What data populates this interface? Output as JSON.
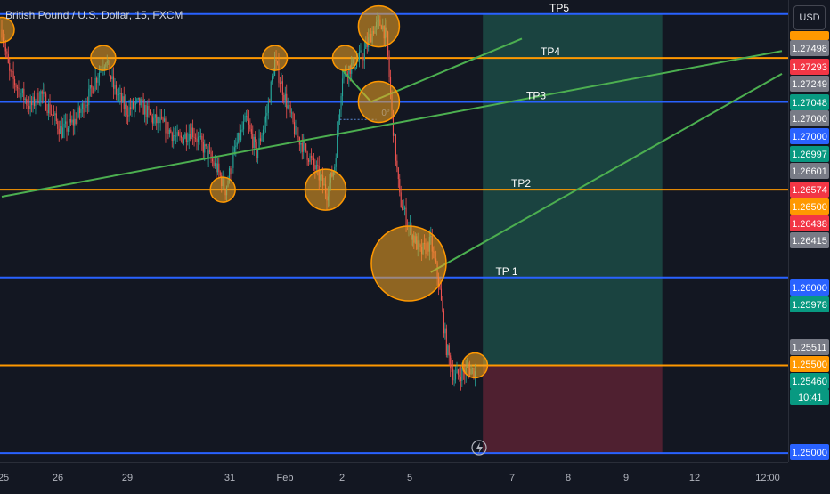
{
  "symbol_title": "British Pound / U.S. Dollar, 15, FXCM",
  "currency_button": "USD",
  "colors": {
    "background": "#131722",
    "blue_level": "#2962ff",
    "orange_level": "#ff9800",
    "trendline": "#4caf50",
    "candle_up": "#26a69a",
    "candle_down": "#ef5350",
    "highlight_circle_fill": "#f5a623",
    "highlight_circle_stroke": "#ff9800",
    "target_zone": "#1c4b45",
    "stop_zone": "#5a2233"
  },
  "chart_data": {
    "type": "candlestick",
    "symbol": "GBPUSD",
    "timeframe": "15",
    "source": "FXCM",
    "ylim": [
      1.2495,
      1.2758
    ],
    "x_tick_labels": [
      "25",
      "26",
      "29",
      "31",
      "Feb",
      "2",
      "5",
      "7",
      "8",
      "9",
      "12",
      "12:00"
    ],
    "price_axis_labels": [
      {
        "value": 1.27498,
        "text": "1.27498",
        "color": "#787b86"
      },
      {
        "value": 1.27293,
        "text": "1.27293",
        "color": "#f23645"
      },
      {
        "value": 1.27249,
        "text": "1.27249",
        "color": "#787b86"
      },
      {
        "value": 1.27048,
        "text": "1.27048",
        "color": "#089981"
      },
      {
        "value": 1.27,
        "text": "1.27000",
        "color": "#787b86"
      },
      {
        "value": 1.27,
        "text": "1.27000",
        "color": "#2962ff"
      },
      {
        "value": 1.26997,
        "text": "1.26997",
        "color": "#089981"
      },
      {
        "value": 1.26601,
        "text": "1.26601",
        "color": "#787b86"
      },
      {
        "value": 1.26574,
        "text": "1.26574",
        "color": "#f23645"
      },
      {
        "value": 1.265,
        "text": "1.26500",
        "color": "#ff9800"
      },
      {
        "value": 1.26438,
        "text": "1.26438",
        "color": "#f23645"
      },
      {
        "value": 1.26415,
        "text": "1.26415",
        "color": "#787b86"
      },
      {
        "value": 1.26,
        "text": "1.26000",
        "color": "#2962ff"
      },
      {
        "value": 1.25978,
        "text": "1.25978",
        "color": "#089981"
      },
      {
        "value": 1.25511,
        "text": "1.25511",
        "color": "#787b86"
      },
      {
        "value": 1.255,
        "text": "1.25500",
        "color": "#ff9800"
      },
      {
        "value": 1.2546,
        "text": "1.25460",
        "color": "#089981"
      },
      {
        "value": 1.25,
        "text": "1.25000",
        "color": "#2962ff"
      }
    ],
    "current_price": "1.25460",
    "countdown": "10:41",
    "horizontal_levels": [
      {
        "price": 1.275,
        "color": "#2962ff",
        "label": "TP5"
      },
      {
        "price": 1.2725,
        "color": "#ff9800",
        "label": "TP4"
      },
      {
        "price": 1.27,
        "color": "#2962ff",
        "label": "TP3"
      },
      {
        "price": 1.265,
        "color": "#ff9800",
        "label": "TP2"
      },
      {
        "price": 1.26,
        "color": "#2962ff",
        "label": "TP 1"
      },
      {
        "price": 1.255,
        "color": "#ff9800",
        "label": ""
      },
      {
        "price": 1.25,
        "color": "#2962ff",
        "label": ""
      }
    ],
    "trendlines": [
      {
        "from": {
          "bar": 0,
          "price": 1.2646
        },
        "to": {
          "bar": 600,
          "price": 1.2729
        }
      },
      {
        "from": {
          "bar": 330,
          "price": 1.2603
        },
        "to": {
          "bar": 600,
          "price": 1.2716
        }
      },
      {
        "from": {
          "bar": 262,
          "price": 1.2718
        },
        "to": {
          "bar": 284,
          "price": 1.27
        }
      },
      {
        "from": {
          "bar": 284,
          "price": 1.27
        },
        "to": {
          "bar": 400,
          "price": 1.2736
        }
      }
    ],
    "angle_label": "0°",
    "highlight_circles": [
      {
        "bar": 0,
        "price": 1.2741,
        "size": "small"
      },
      {
        "bar": 78,
        "price": 1.2725,
        "size": "small"
      },
      {
        "bar": 170,
        "price": 1.265,
        "size": "small"
      },
      {
        "bar": 210,
        "price": 1.2725,
        "size": "small"
      },
      {
        "bar": 249,
        "price": 1.265,
        "size": "medium"
      },
      {
        "bar": 264,
        "price": 1.2725,
        "size": "small"
      },
      {
        "bar": 290,
        "price": 1.2743,
        "size": "medium"
      },
      {
        "bar": 290,
        "price": 1.27,
        "size": "medium"
      },
      {
        "bar": 313,
        "price": 1.2608,
        "size": "large"
      },
      {
        "bar": 364,
        "price": 1.255,
        "size": "small"
      }
    ],
    "position_tool": {
      "entry_price": 1.255,
      "target_price": 1.275,
      "stop_price": 1.25,
      "start_bar": 370,
      "end_bar": 508
    },
    "last_bar": 364
  }
}
